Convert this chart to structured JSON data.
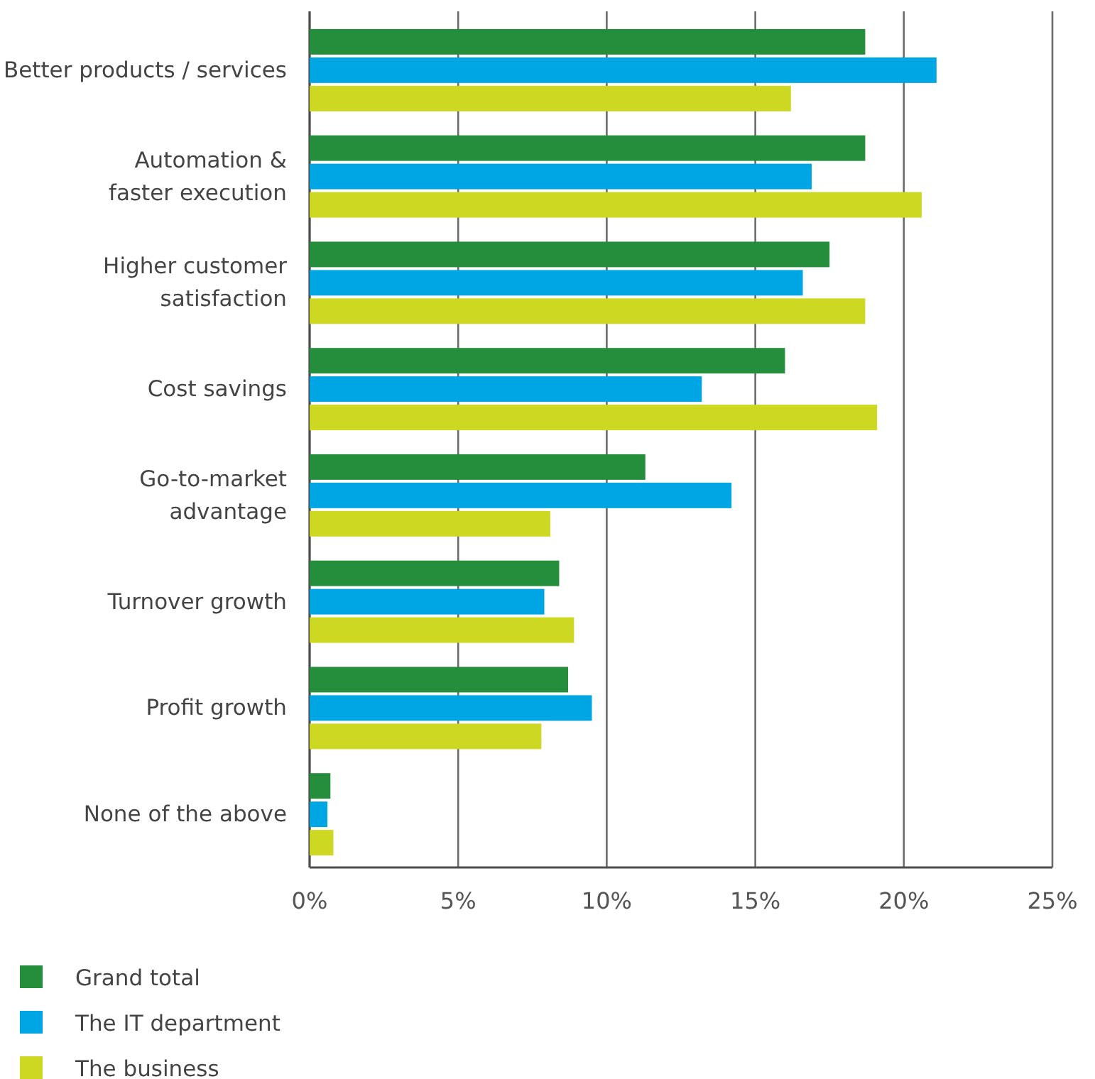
{
  "chart_data": {
    "type": "bar",
    "orientation": "horizontal",
    "categories": [
      "Better products / services",
      "Automation &\nfaster execution",
      "Higher customer\nsatisfaction",
      "Cost savings",
      "Go-to-market\nadvantage",
      "Turnover growth",
      "Profit growth",
      "None of the above"
    ],
    "series": [
      {
        "name": "Grand total",
        "color": "#258e3c",
        "values": [
          18.7,
          18.7,
          17.5,
          16.0,
          11.3,
          8.4,
          8.7,
          0.7
        ]
      },
      {
        "name": "The IT department",
        "color": "#00a5e3",
        "values": [
          21.1,
          16.9,
          16.6,
          13.2,
          14.2,
          7.9,
          9.5,
          0.6
        ]
      },
      {
        "name": "The business",
        "color": "#cdd823",
        "values": [
          16.2,
          20.6,
          18.7,
          19.1,
          8.1,
          8.9,
          7.8,
          0.8
        ]
      }
    ],
    "xlim": [
      0,
      25
    ],
    "xticks": [
      {
        "value": 0,
        "label": "0%"
      },
      {
        "value": 5,
        "label": "5%"
      },
      {
        "value": 10,
        "label": "10%"
      },
      {
        "value": 15,
        "label": "15%"
      },
      {
        "value": 20,
        "label": "20%"
      },
      {
        "value": 25,
        "label": "25%"
      }
    ],
    "grid": "x",
    "legend": "bottom left"
  }
}
